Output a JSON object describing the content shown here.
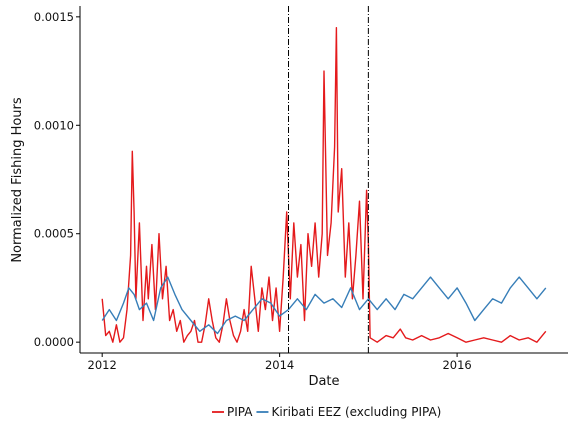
{
  "chart_data": {
    "type": "line",
    "title": "",
    "xlabel": "Date",
    "ylabel": "Normalized Fishing Hours",
    "xlim": [
      2011.75,
      2017.25
    ],
    "ylim": [
      -5e-05,
      0.00155
    ],
    "xticks": [
      2012,
      2014,
      2016
    ],
    "xtick_labels": [
      "2012",
      "2014",
      "2016"
    ],
    "yticks": [
      0,
      0.0005,
      0.001,
      0.0015
    ],
    "ytick_labels": [
      "0.0000",
      "0.0005",
      "0.0010",
      "0.0015"
    ],
    "grid": false,
    "legend_position": "bottom",
    "vlines": [
      {
        "x": 2014.1,
        "style": "dotdash",
        "color": "#000000"
      },
      {
        "x": 2015.0,
        "style": "dotdash",
        "color": "#000000"
      }
    ],
    "series": [
      {
        "name": "PIPA",
        "color": "#e41a1c",
        "x": [
          2012.0,
          2012.04,
          2012.08,
          2012.12,
          2012.16,
          2012.2,
          2012.24,
          2012.28,
          2012.32,
          2012.34,
          2012.36,
          2012.38,
          2012.42,
          2012.46,
          2012.5,
          2012.52,
          2012.56,
          2012.6,
          2012.64,
          2012.68,
          2012.72,
          2012.76,
          2012.8,
          2012.84,
          2012.88,
          2012.92,
          2012.96,
          2013.0,
          2013.04,
          2013.08,
          2013.12,
          2013.16,
          2013.2,
          2013.24,
          2013.28,
          2013.32,
          2013.36,
          2013.4,
          2013.44,
          2013.48,
          2013.52,
          2013.56,
          2013.6,
          2013.64,
          2013.68,
          2013.72,
          2013.76,
          2013.8,
          2013.84,
          2013.88,
          2013.92,
          2013.96,
          2014.0,
          2014.04,
          2014.08,
          2014.12,
          2014.16,
          2014.2,
          2014.24,
          2014.28,
          2014.32,
          2014.36,
          2014.4,
          2014.44,
          2014.48,
          2014.5,
          2014.54,
          2014.58,
          2014.62,
          2014.64,
          2014.66,
          2014.7,
          2014.74,
          2014.78,
          2014.82,
          2014.86,
          2014.9,
          2014.94,
          2014.98,
          2015.0,
          2015.02,
          2015.1,
          2015.2,
          2015.28,
          2015.36,
          2015.42,
          2015.5,
          2015.6,
          2015.7,
          2015.8,
          2015.9,
          2016.0,
          2016.1,
          2016.2,
          2016.3,
          2016.4,
          2016.5,
          2016.6,
          2016.7,
          2016.8,
          2016.9,
          2017.0
        ],
        "values": [
          0.0002,
          3e-05,
          5e-05,
          0.0,
          8e-05,
          0.0,
          2e-05,
          0.00015,
          0.0004,
          0.00088,
          0.0006,
          0.0002,
          0.00055,
          0.0001,
          0.00035,
          0.0002,
          0.00045,
          0.00015,
          0.0005,
          0.0002,
          0.00035,
          0.0001,
          0.00015,
          5e-05,
          0.0001,
          0.0,
          3e-05,
          5e-05,
          0.0001,
          0.0,
          0.0,
          8e-05,
          0.0002,
          0.0001,
          2e-05,
          0.0,
          8e-05,
          0.0002,
          0.0001,
          3e-05,
          0.0,
          5e-05,
          0.00015,
          5e-05,
          0.00035,
          0.0002,
          5e-05,
          0.00025,
          0.00015,
          0.0003,
          0.0001,
          0.00025,
          5e-05,
          0.0003,
          0.0006,
          0.0002,
          0.00055,
          0.0003,
          0.00045,
          0.0001,
          0.0005,
          0.00035,
          0.00055,
          0.0003,
          0.0005,
          0.00125,
          0.0004,
          0.00055,
          0.0009,
          0.00145,
          0.0006,
          0.0008,
          0.0003,
          0.00055,
          0.0002,
          0.0004,
          0.00065,
          0.0002,
          0.0007,
          0.00045,
          2e-05,
          0.0,
          3e-05,
          2e-05,
          6e-05,
          2e-05,
          1e-05,
          3e-05,
          1e-05,
          2e-05,
          4e-05,
          2e-05,
          0.0,
          1e-05,
          2e-05,
          1e-05,
          0.0,
          3e-05,
          1e-05,
          2e-05,
          0.0,
          5e-05
        ]
      },
      {
        "name": "Kiribati EEZ (excluding PIPA)",
        "color": "#377eb8",
        "x": [
          2012.0,
          2012.08,
          2012.16,
          2012.24,
          2012.3,
          2012.36,
          2012.42,
          2012.5,
          2012.58,
          2012.66,
          2012.74,
          2012.82,
          2012.9,
          2013.0,
          2013.1,
          2013.2,
          2013.3,
          2013.4,
          2013.5,
          2013.6,
          2013.7,
          2013.8,
          2013.9,
          2014.0,
          2014.1,
          2014.2,
          2014.3,
          2014.4,
          2014.5,
          2014.6,
          2014.7,
          2014.8,
          2014.9,
          2015.0,
          2015.1,
          2015.2,
          2015.3,
          2015.4,
          2015.5,
          2015.6,
          2015.7,
          2015.8,
          2015.9,
          2016.0,
          2016.1,
          2016.2,
          2016.3,
          2016.4,
          2016.5,
          2016.6,
          2016.7,
          2016.8,
          2016.9,
          2017.0
        ],
        "values": [
          0.0001,
          0.00015,
          0.0001,
          0.00018,
          0.00025,
          0.00022,
          0.00015,
          0.00018,
          0.0001,
          0.00025,
          0.0003,
          0.00022,
          0.00015,
          0.0001,
          5e-05,
          8e-05,
          4e-05,
          0.0001,
          0.00012,
          0.0001,
          0.00015,
          0.0002,
          0.00018,
          0.00012,
          0.00015,
          0.0002,
          0.00015,
          0.00022,
          0.00018,
          0.0002,
          0.00016,
          0.00025,
          0.00015,
          0.0002,
          0.00015,
          0.0002,
          0.00015,
          0.00022,
          0.0002,
          0.00025,
          0.0003,
          0.00025,
          0.0002,
          0.00025,
          0.00018,
          0.0001,
          0.00015,
          0.0002,
          0.00018,
          0.00025,
          0.0003,
          0.00025,
          0.0002,
          0.00025
        ]
      }
    ]
  }
}
